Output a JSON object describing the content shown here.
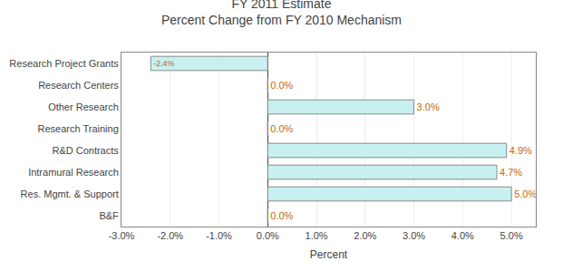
{
  "chart_data": {
    "type": "bar",
    "orientation": "horizontal",
    "title": "FY 2011 Estimate\nPercent Change from FY 2010 Mechanism",
    "xlabel": "Percent",
    "categories": [
      "B&F",
      "Res. Mgmt. & Support",
      "Intramural Research",
      "R&D Contracts",
      "Research Training",
      "Other Research",
      "Research Centers",
      "Research Project Grants"
    ],
    "values": [
      0.0,
      5.0,
      4.7,
      4.9,
      0.0,
      3.0,
      0.0,
      -2.4
    ],
    "value_labels": [
      "0.0%",
      "5.0%",
      "4.7%",
      "4.9%",
      "0.0%",
      "3.0%",
      "0.0%",
      "-2.4%"
    ],
    "data_labels": true,
    "color": "#c8f0f0",
    "xlim": [
      -3.0,
      5.5
    ],
    "xticks": [
      {
        "value": -3.0,
        "label": "-3.0%"
      },
      {
        "value": -2.0,
        "label": "-2.0%"
      },
      {
        "value": -1.0,
        "label": "-1.0%"
      },
      {
        "value": 0.0,
        "label": "0.0%"
      },
      {
        "value": 1.0,
        "label": "1.0%"
      },
      {
        "value": 2.0,
        "label": "2.0%"
      },
      {
        "value": 3.0,
        "label": "3.0%"
      },
      {
        "value": 4.0,
        "label": "4.0%"
      },
      {
        "value": 5.0,
        "label": "5.0%"
      }
    ],
    "grid": true
  }
}
